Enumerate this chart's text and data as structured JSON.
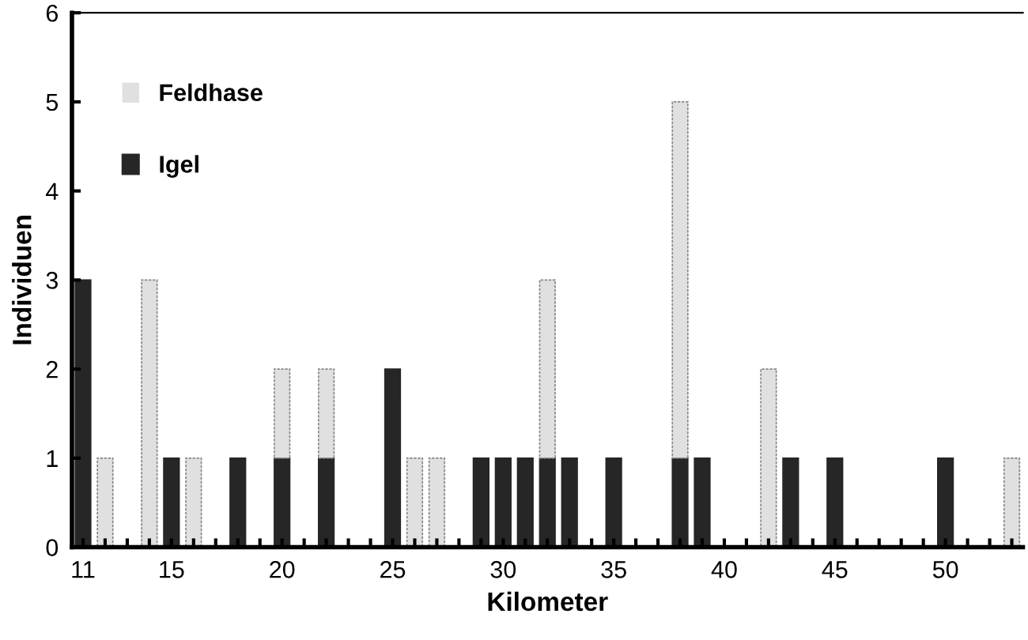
{
  "chart_data": {
    "type": "bar",
    "stacked": true,
    "xlabel": "Kilometer",
    "ylabel": "Individuen",
    "categories": [
      "11",
      null,
      null,
      null,
      "15",
      null,
      null,
      null,
      null,
      "20",
      null,
      null,
      null,
      null,
      "25",
      null,
      null,
      null,
      null,
      "30",
      null,
      null,
      null,
      null,
      "35",
      null,
      null,
      null,
      null,
      "40",
      null,
      null,
      null,
      null,
      "45",
      null,
      null,
      null,
      null,
      "50",
      null,
      null,
      null
    ],
    "series": [
      {
        "name": "Igel",
        "color": "#262626",
        "values": [
          3,
          0,
          0,
          0,
          1,
          0,
          0,
          1,
          0,
          1,
          0,
          1,
          0,
          0,
          2,
          0,
          0,
          0,
          1,
          1,
          1,
          1,
          1,
          0,
          1,
          0,
          0,
          1,
          1,
          0,
          0,
          0,
          1,
          0,
          1,
          0,
          0,
          0,
          0,
          1,
          0,
          0,
          0
        ]
      },
      {
        "name": "Feldhase",
        "color": "#e0e0e0",
        "values": [
          0,
          1,
          0,
          3,
          0,
          1,
          0,
          0,
          0,
          1,
          0,
          1,
          0,
          0,
          0,
          1,
          1,
          0,
          0,
          0,
          0,
          2,
          0,
          0,
          0,
          0,
          0,
          4,
          0,
          0,
          0,
          2,
          0,
          0,
          0,
          0,
          0,
          0,
          0,
          0,
          0,
          0,
          1
        ]
      }
    ],
    "ylim": [
      0,
      6
    ],
    "yticks": [
      0,
      1,
      2,
      3,
      4,
      5,
      6
    ],
    "grid": false,
    "legend": "top left"
  }
}
